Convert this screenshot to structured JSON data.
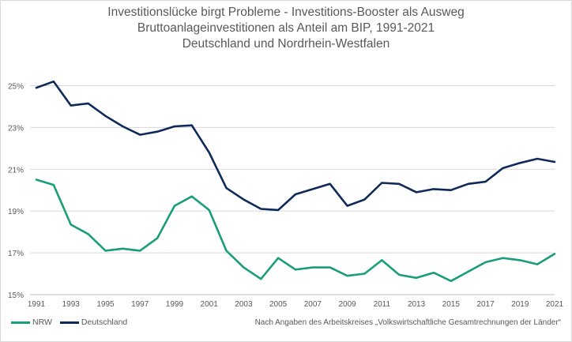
{
  "chart_data": {
    "type": "line",
    "title_lines": [
      "Investitionslücke birgt Probleme - Investitions-Booster als Ausweg",
      "Bruttoanlageinvestitionen als Anteil am BIP, 1991-2021",
      "Deutschland und Nordrhein-Westfalen"
    ],
    "x": [
      1991,
      1992,
      1993,
      1994,
      1995,
      1996,
      1997,
      1998,
      1999,
      2000,
      2001,
      2002,
      2003,
      2004,
      2005,
      2006,
      2007,
      2008,
      2009,
      2010,
      2011,
      2012,
      2013,
      2014,
      2015,
      2016,
      2017,
      2018,
      2019,
      2020,
      2021
    ],
    "x_tick_labels": [
      "1991",
      "1993",
      "1995",
      "1997",
      "1999",
      "2001",
      "2003",
      "2005",
      "2007",
      "2009",
      "2011",
      "2013",
      "2015",
      "2017",
      "2019",
      "2021"
    ],
    "y_tick_labels": [
      "15%",
      "17%",
      "19%",
      "21%",
      "23%",
      "25%"
    ],
    "ylim": [
      15,
      26
    ],
    "grid": true,
    "legend_position": "bottom-left",
    "series": [
      {
        "name": "NRW",
        "color": "#1a9e77",
        "values": [
          20.5,
          20.25,
          18.35,
          17.9,
          17.1,
          17.2,
          17.1,
          17.7,
          19.25,
          19.7,
          19.05,
          17.1,
          16.3,
          15.75,
          16.75,
          16.2,
          16.3,
          16.3,
          15.9,
          16.0,
          16.65,
          15.95,
          15.8,
          16.05,
          15.65,
          16.1,
          16.55,
          16.75,
          16.65,
          16.45,
          16.95
        ]
      },
      {
        "name": "Deutschland",
        "color": "#0e2a5a",
        "values": [
          24.9,
          25.2,
          24.05,
          24.15,
          23.55,
          23.05,
          22.65,
          22.8,
          23.05,
          23.1,
          21.8,
          20.1,
          19.55,
          19.1,
          19.05,
          19.8,
          20.05,
          20.3,
          19.25,
          19.55,
          20.35,
          20.3,
          19.9,
          20.05,
          20.0,
          20.3,
          20.4,
          21.05,
          21.3,
          21.5,
          21.35
        ]
      }
    ]
  },
  "legend": {
    "nrw_label": "NRW",
    "de_label": "Deutschland"
  },
  "source_note": "Nach Angaben des Arbeitskreises „Volkswirtschaftliche Gesamtrechnungen der Länder“"
}
